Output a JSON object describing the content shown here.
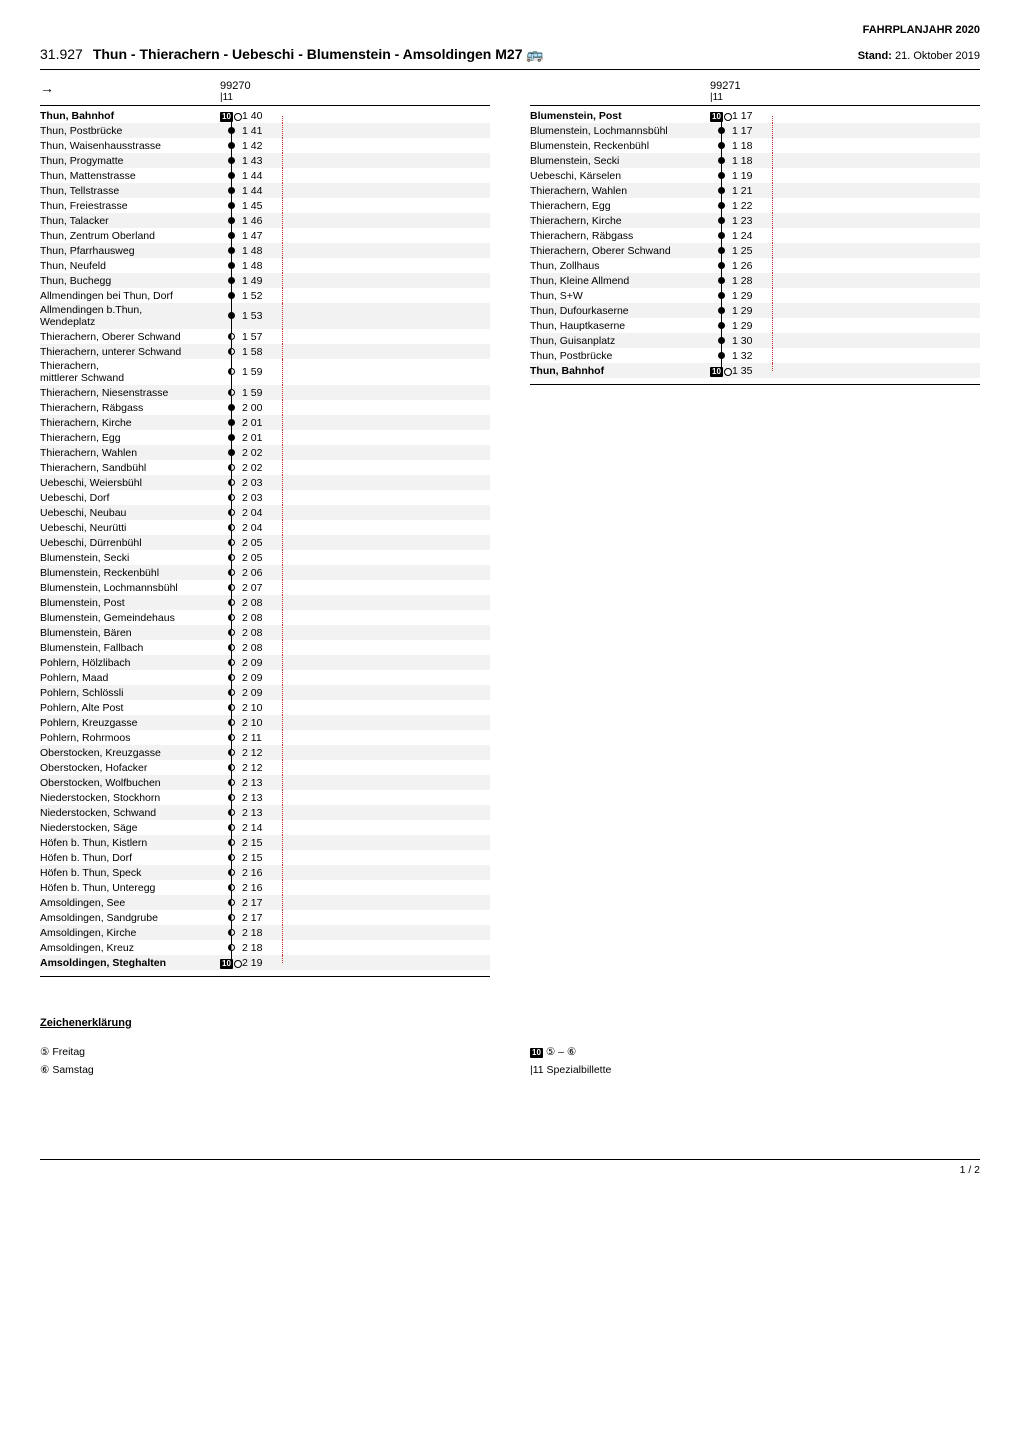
{
  "header_right": "FAHRPLANJAHR 2020",
  "route_code": "31.927",
  "route_title": "Thun - Thierachern - Uebeschi - Blumenstein - Amsoldingen M27",
  "bus_icon": "🚌",
  "stand_label": "Stand:",
  "stand_value": "21. Oktober 2019",
  "left": {
    "arrow": "→",
    "trip_number": "99270",
    "trip_note": "|11",
    "stops": [
      {
        "name": "Thun, Bahnhof",
        "bold": true,
        "marker": "terminal",
        "time": "1 40",
        "tick": true
      },
      {
        "name": "Thun, Postbrücke",
        "marker": "dot",
        "time": "1 41"
      },
      {
        "name": "Thun, Waisenhausstrasse",
        "marker": "dot",
        "time": "1 42"
      },
      {
        "name": "Thun, Progymatte",
        "marker": "dot",
        "time": "1 43"
      },
      {
        "name": "Thun, Mattenstrasse",
        "marker": "dot",
        "time": "1 44"
      },
      {
        "name": "Thun, Tellstrasse",
        "marker": "dot",
        "time": "1 44"
      },
      {
        "name": "Thun, Freiestrasse",
        "marker": "dot",
        "time": "1 45"
      },
      {
        "name": "Thun, Talacker",
        "marker": "dot",
        "time": "1 46"
      },
      {
        "name": "Thun, Zentrum Oberland",
        "marker": "dot",
        "time": "1 47"
      },
      {
        "name": "Thun, Pfarrhausweg",
        "marker": "dot",
        "time": "1 48"
      },
      {
        "name": "Thun, Neufeld",
        "marker": "dot",
        "time": "1 48"
      },
      {
        "name": "Thun, Buchegg",
        "marker": "dot",
        "time": "1 49"
      },
      {
        "name": "Allmendingen bei Thun, Dorf",
        "marker": "dot",
        "time": "1 52"
      },
      {
        "name": "Allmendingen b.Thun, Wendeplatz",
        "marker": "dot",
        "time": "1 53",
        "two_line": true
      },
      {
        "name": "Thierachern, Oberer Schwand",
        "marker": "half",
        "time": "1 57"
      },
      {
        "name": "Thierachern, unterer Schwand",
        "marker": "half",
        "time": "1 58"
      },
      {
        "name": "Thierachern, mittlerer Schwand",
        "marker": "half",
        "time": "1 59",
        "two_line": true
      },
      {
        "name": "Thierachern, Niesenstrasse",
        "marker": "half",
        "time": "1 59"
      },
      {
        "name": "Thierachern, Räbgass",
        "marker": "dot",
        "time": "2 00"
      },
      {
        "name": "Thierachern, Kirche",
        "marker": "dot",
        "time": "2 01"
      },
      {
        "name": "Thierachern, Egg",
        "marker": "dot",
        "time": "2 01"
      },
      {
        "name": "Thierachern, Wahlen",
        "marker": "dot",
        "time": "2 02"
      },
      {
        "name": "Thierachern, Sandbühl",
        "marker": "half",
        "time": "2 02"
      },
      {
        "name": "Uebeschi, Weiersbühl",
        "marker": "half",
        "time": "2 03"
      },
      {
        "name": "Uebeschi, Dorf",
        "marker": "half",
        "time": "2 03"
      },
      {
        "name": "Uebeschi, Neubau",
        "marker": "half",
        "time": "2 04"
      },
      {
        "name": "Uebeschi, Neurütti",
        "marker": "half",
        "time": "2 04"
      },
      {
        "name": "Uebeschi, Dürrenbühl",
        "marker": "half",
        "time": "2 05"
      },
      {
        "name": "Blumenstein, Secki",
        "marker": "half",
        "time": "2 05"
      },
      {
        "name": "Blumenstein, Reckenbühl",
        "marker": "half",
        "time": "2 06"
      },
      {
        "name": "Blumenstein, Lochmannsbühl",
        "marker": "half",
        "time": "2 07"
      },
      {
        "name": "Blumenstein, Post",
        "marker": "half",
        "time": "2 08"
      },
      {
        "name": "Blumenstein, Gemeindehaus",
        "marker": "half",
        "time": "2 08"
      },
      {
        "name": "Blumenstein, Bären",
        "marker": "half",
        "time": "2 08"
      },
      {
        "name": "Blumenstein, Fallbach",
        "marker": "half",
        "time": "2 08"
      },
      {
        "name": "Pohlern, Hölzlibach",
        "marker": "half",
        "time": "2 09"
      },
      {
        "name": "Pohlern, Maad",
        "marker": "half",
        "time": "2 09"
      },
      {
        "name": "Pohlern, Schlössli",
        "marker": "half",
        "time": "2 09"
      },
      {
        "name": "Pohlern, Alte Post",
        "marker": "half",
        "time": "2 10"
      },
      {
        "name": "Pohlern, Kreuzgasse",
        "marker": "half",
        "time": "2 10"
      },
      {
        "name": "Pohlern, Rohrmoos",
        "marker": "half",
        "time": "2 11"
      },
      {
        "name": "Oberstocken, Kreuzgasse",
        "marker": "half",
        "time": "2 12"
      },
      {
        "name": "Oberstocken, Hofacker",
        "marker": "half",
        "time": "2 12"
      },
      {
        "name": "Oberstocken, Wolfbuchen",
        "marker": "half",
        "time": "2 13"
      },
      {
        "name": "Niederstocken, Stockhorn",
        "marker": "half",
        "time": "2 13"
      },
      {
        "name": "Niederstocken, Schwand",
        "marker": "half",
        "time": "2 13"
      },
      {
        "name": "Niederstocken, Säge",
        "marker": "half",
        "time": "2 14"
      },
      {
        "name": "Höfen b. Thun, Kistlern",
        "marker": "half",
        "time": "2 15"
      },
      {
        "name": "Höfen b. Thun, Dorf",
        "marker": "half",
        "time": "2 15"
      },
      {
        "name": "Höfen b. Thun, Speck",
        "marker": "half",
        "time": "2 16"
      },
      {
        "name": "Höfen b. Thun, Unteregg",
        "marker": "half",
        "time": "2 16"
      },
      {
        "name": "Amsoldingen, See",
        "marker": "half",
        "time": "2 17"
      },
      {
        "name": "Amsoldingen, Sandgrube",
        "marker": "half",
        "time": "2 17"
      },
      {
        "name": "Amsoldingen, Kirche",
        "marker": "half",
        "time": "2 18"
      },
      {
        "name": "Amsoldingen, Kreuz",
        "marker": "half",
        "time": "2 18"
      },
      {
        "name": "Amsoldingen, Steghalten",
        "bold": true,
        "marker": "terminal",
        "time": "2 19",
        "tick": true
      }
    ]
  },
  "right": {
    "trip_number": "99271",
    "trip_note": "|11",
    "stops": [
      {
        "name": "Blumenstein, Post",
        "bold": true,
        "marker": "terminal",
        "time": "1 17",
        "tick": true
      },
      {
        "name": "Blumenstein, Lochmannsbühl",
        "marker": "dot",
        "time": "1 17"
      },
      {
        "name": "Blumenstein, Reckenbühl",
        "marker": "dot",
        "time": "1 18"
      },
      {
        "name": "Blumenstein, Secki",
        "marker": "dot",
        "time": "1 18"
      },
      {
        "name": "Uebeschi, Kärselen",
        "marker": "dot",
        "time": "1 19"
      },
      {
        "name": "Thierachern, Wahlen",
        "marker": "dot",
        "time": "1 21"
      },
      {
        "name": "Thierachern, Egg",
        "marker": "dot",
        "time": "1 22"
      },
      {
        "name": "Thierachern, Kirche",
        "marker": "dot",
        "time": "1 23"
      },
      {
        "name": "Thierachern, Räbgass",
        "marker": "dot",
        "time": "1 24"
      },
      {
        "name": "Thierachern, Oberer Schwand",
        "marker": "dot",
        "time": "1 25"
      },
      {
        "name": "Thun, Zollhaus",
        "marker": "dot",
        "time": "1 26"
      },
      {
        "name": "Thun, Kleine Allmend",
        "marker": "dot",
        "time": "1 28"
      },
      {
        "name": "Thun, S+W",
        "marker": "dot",
        "time": "1 29"
      },
      {
        "name": "Thun, Dufourkaserne",
        "marker": "dot",
        "time": "1 29"
      },
      {
        "name": "Thun, Hauptkaserne",
        "marker": "dot",
        "time": "1 29"
      },
      {
        "name": "Thun, Guisanplatz",
        "marker": "dot",
        "time": "1 30"
      },
      {
        "name": "Thun, Postbrücke",
        "marker": "dot",
        "time": "1 32"
      },
      {
        "name": "Thun, Bahnhof",
        "bold": true,
        "marker": "terminal",
        "time": "1 35",
        "tick": true
      }
    ]
  },
  "legend": {
    "title": "Zeichenerklärung",
    "left_items": [
      {
        "sym": "⑤",
        "text": "Freitag"
      },
      {
        "sym": "⑥",
        "text": "Samstag"
      }
    ],
    "right_items": [
      {
        "sym": "10",
        "text": "⑤ – ⑥",
        "badge": true
      },
      {
        "sym": "|11",
        "text": "Spezialbillette"
      }
    ]
  },
  "pager": "1 / 2",
  "colors": {
    "text": "#000000",
    "zebra": "#f2f2f2",
    "dotted": "#cc3333"
  }
}
